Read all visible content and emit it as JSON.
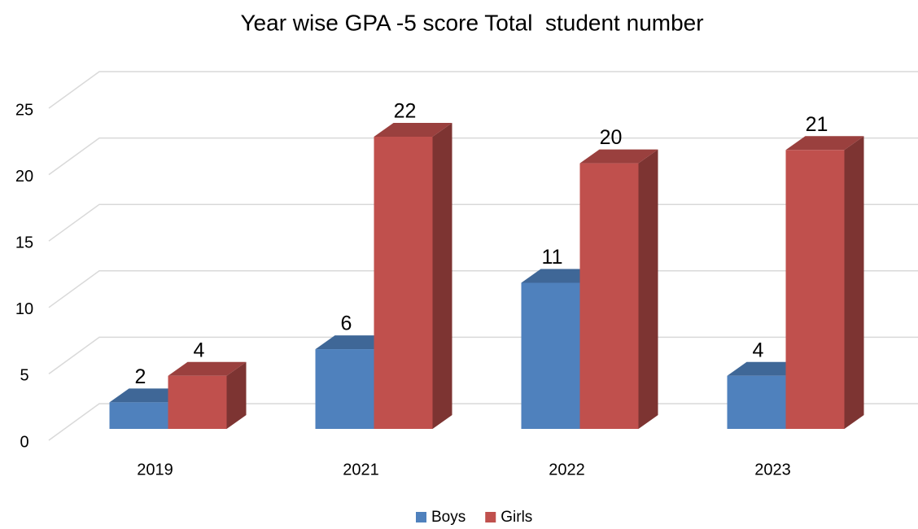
{
  "chart_data": {
    "type": "bar3d",
    "title": "Year wise GPA -5 score Total  student number",
    "categories": [
      "2019",
      "2021",
      "2022",
      "2023"
    ],
    "series": [
      {
        "name": "Boys",
        "color": "#4f81bd",
        "values": [
          2,
          6,
          11,
          4
        ]
      },
      {
        "name": "Girls",
        "color": "#c0504d",
        "values": [
          4,
          22,
          20,
          21
        ]
      }
    ],
    "ylim": [
      0,
      25
    ],
    "yticks": [
      0,
      5,
      10,
      15,
      20,
      25
    ],
    "grid": true,
    "legend": "bottom"
  }
}
